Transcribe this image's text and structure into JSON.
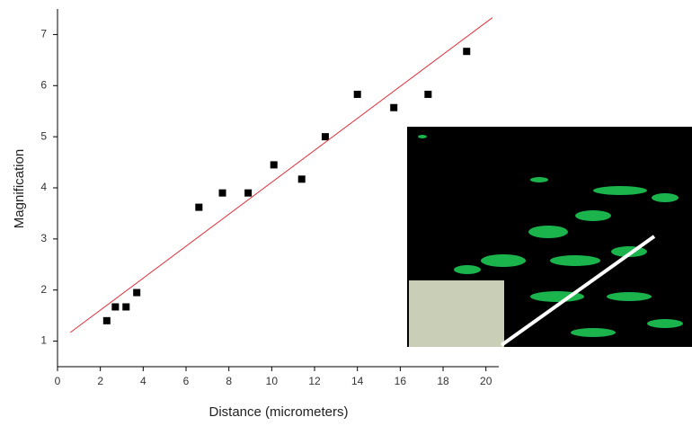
{
  "chart_data": {
    "type": "scatter",
    "x_label": "Distance (micrometers)",
    "y_label": "Magnification",
    "xlim": [
      0,
      20.6
    ],
    "ylim": [
      0.5,
      7.5
    ],
    "xticks": [
      0,
      2,
      4,
      6,
      8,
      10,
      12,
      14,
      16,
      18,
      20
    ],
    "yticks": [
      1,
      2,
      3,
      4,
      5,
      6,
      7
    ],
    "series": [
      {
        "type": "scatter",
        "color": "#000000",
        "x": [
          2.3,
          2.7,
          3.2,
          3.7,
          6.6,
          7.7,
          8.9,
          10.1,
          11.4,
          12.5,
          14.0,
          15.7,
          17.3,
          19.1
        ],
        "values": [
          1.4,
          1.67,
          1.67,
          1.95,
          3.62,
          3.9,
          3.9,
          4.45,
          4.17,
          5.0,
          5.83,
          5.57,
          5.83,
          6.67
        ]
      },
      {
        "type": "line",
        "color": "#e0303a",
        "x": [
          0.6,
          20.3
        ],
        "values": [
          1.17,
          7.33
        ]
      }
    ]
  }
}
